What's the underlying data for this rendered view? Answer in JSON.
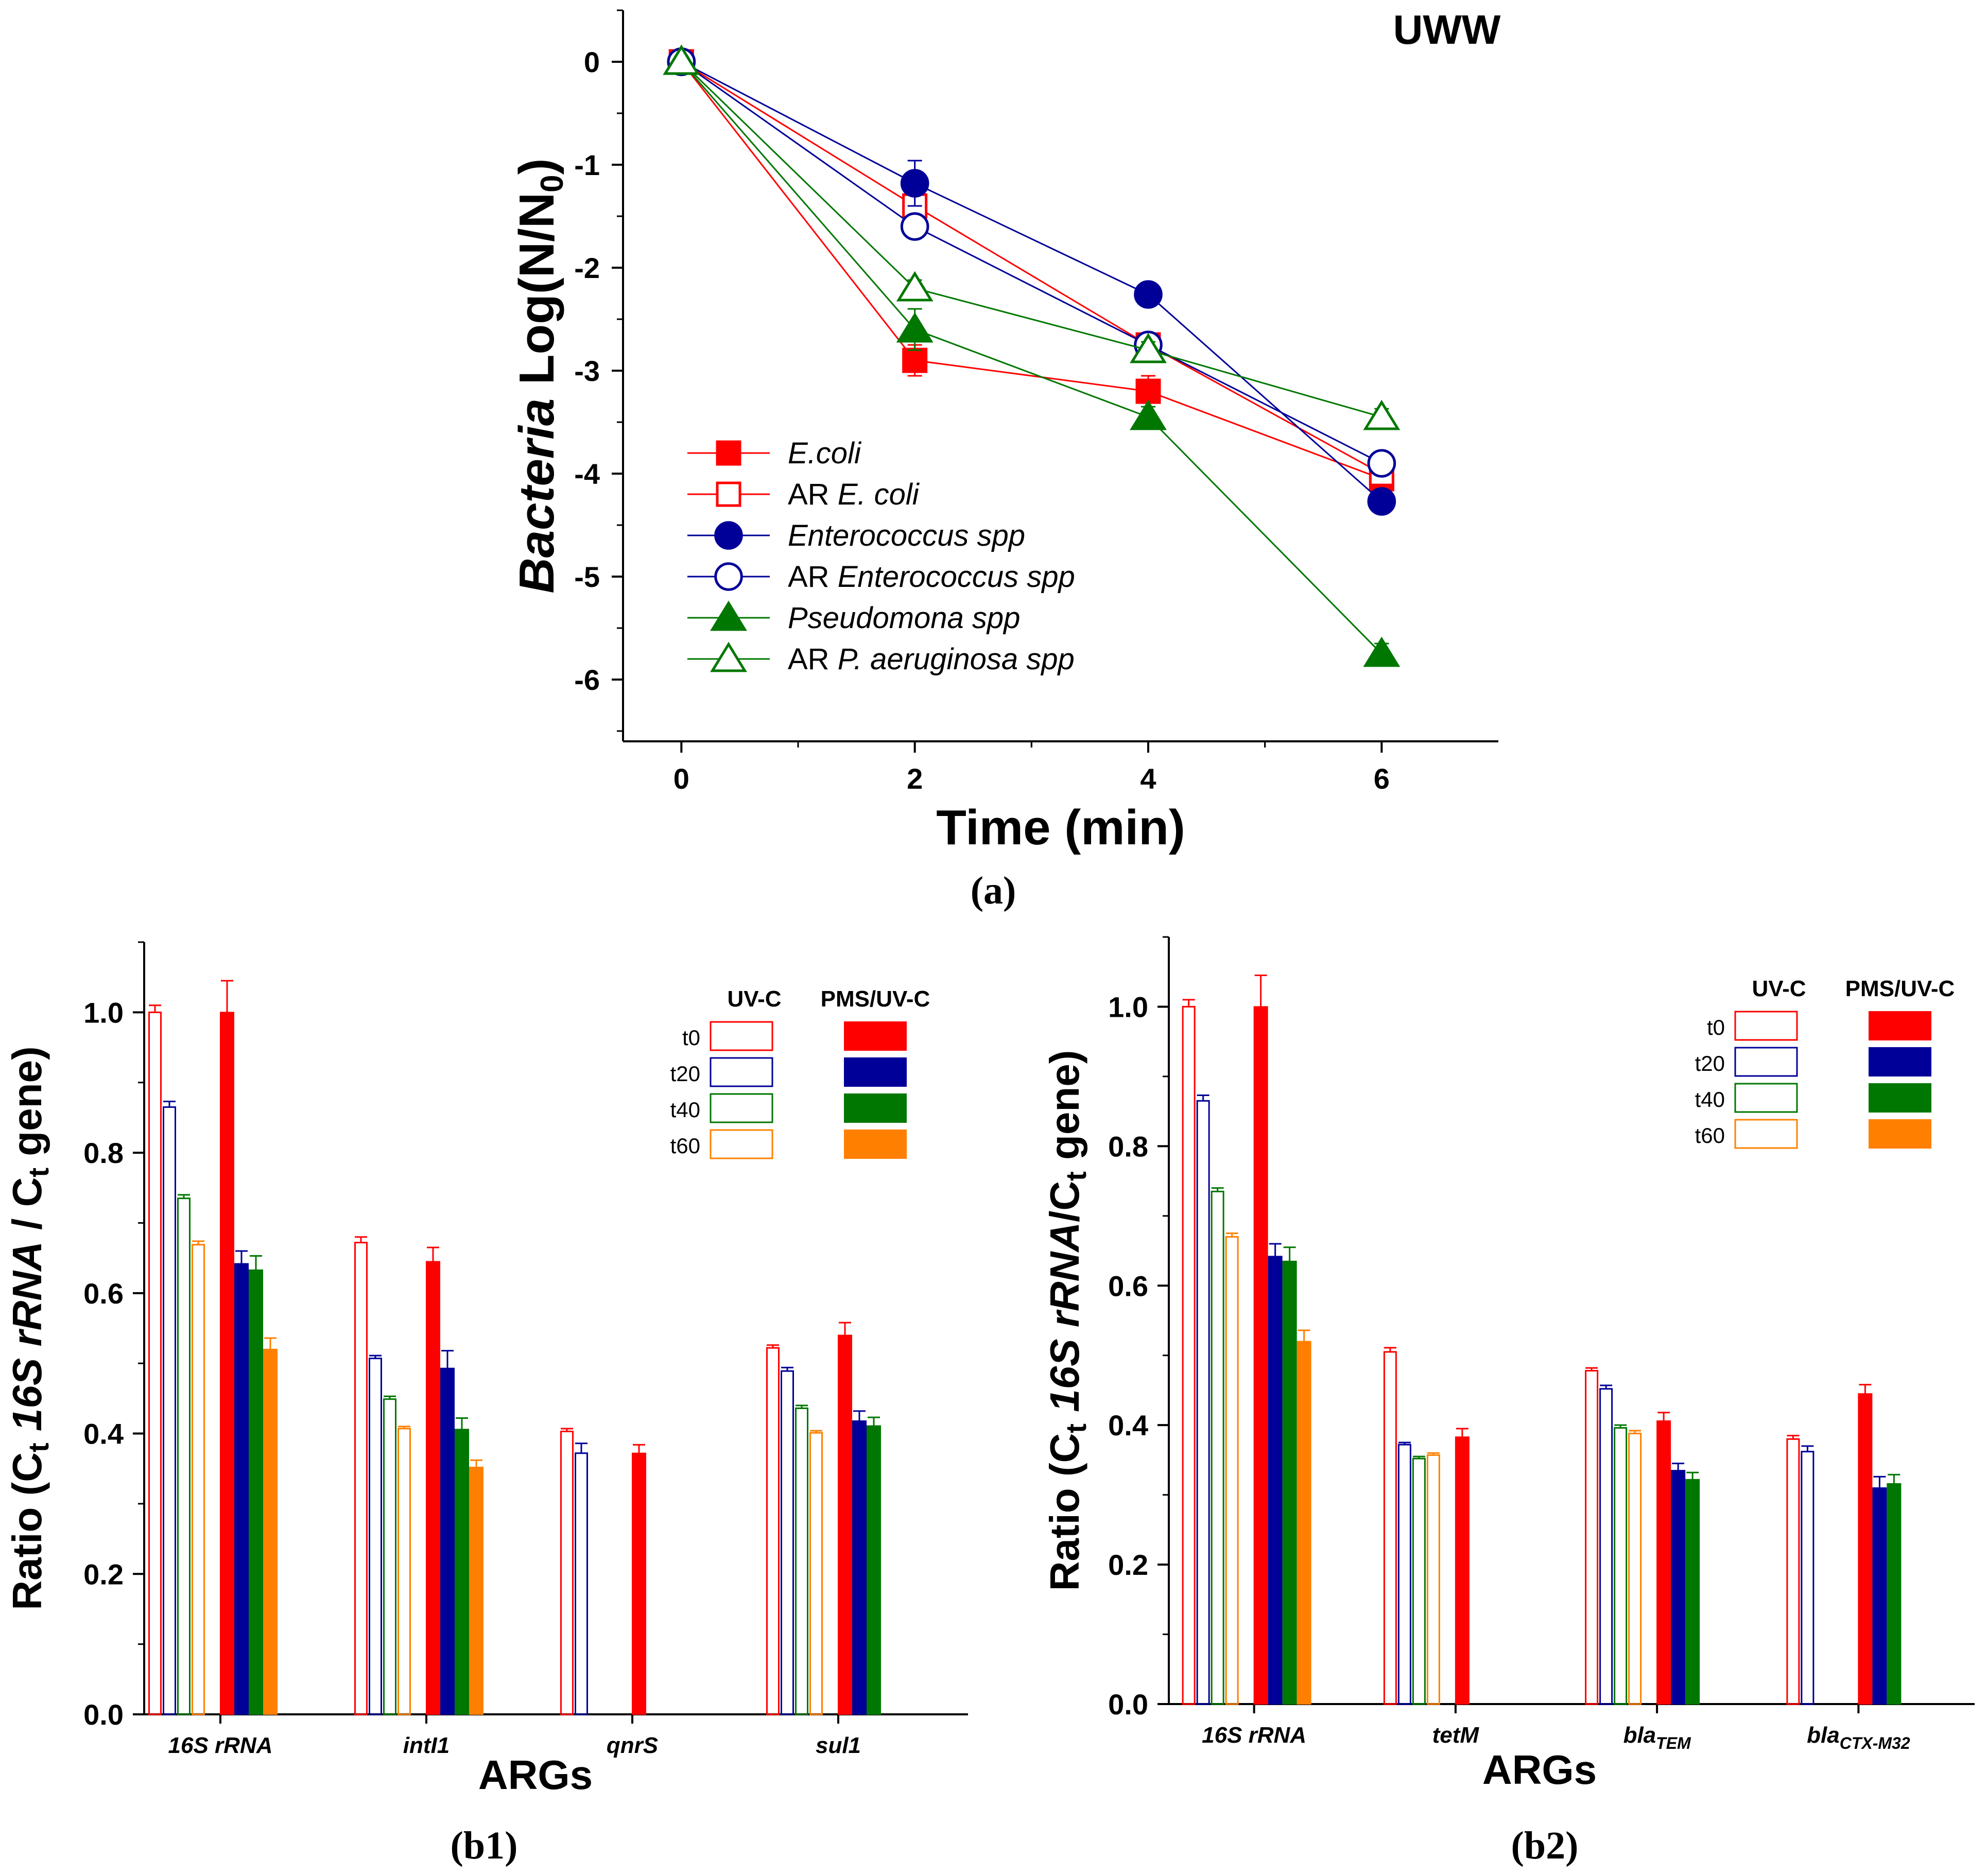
{
  "chart_data": [
    {
      "id": "a",
      "type": "line",
      "panel_label": "(a)",
      "annotation": "UWW",
      "title": "",
      "xlabel": "Time (min)",
      "ylabel_italic": "Bacteria",
      "ylabel_rest": " Log(N/N",
      "ylabel_sub": "0",
      "ylabel_close": ")",
      "xlim": [
        -0.5,
        7
      ],
      "ylim": [
        -6.6,
        0.5
      ],
      "x_ticks": [
        0,
        2,
        4,
        6
      ],
      "y_ticks": [
        0,
        -1,
        -2,
        -3,
        -4,
        -5,
        -6
      ],
      "x": [
        0,
        2,
        4,
        6
      ],
      "series": [
        {
          "name": "E.coli",
          "prefix": "",
          "italic": "E.coli",
          "color": "#ff0000",
          "marker": "square",
          "filled": true,
          "values": [
            0,
            -2.9,
            -3.2,
            -4.05
          ],
          "errors": [
            0.05,
            0.15,
            0.15,
            0.1
          ]
        },
        {
          "name": "AR E. coli",
          "prefix": "AR ",
          "italic": "E. coli",
          "color": "#ff0000",
          "marker": "square",
          "filled": false,
          "values": [
            0,
            -1.4,
            -2.75,
            -4.0
          ],
          "errors": [
            0.05,
            0.1,
            0.1,
            0.1
          ]
        },
        {
          "name": "Enterococcus spp",
          "prefix": "",
          "italic": "Enterococcus spp",
          "color": "#000099",
          "marker": "circle",
          "filled": true,
          "values": [
            0,
            -1.18,
            -2.26,
            -4.27
          ],
          "errors": [
            0.05,
            0.22,
            0.08,
            0.08
          ]
        },
        {
          "name": "AR Enterococcus spp",
          "prefix": "AR ",
          "italic": "Enterococcus spp",
          "color": "#000099",
          "marker": "circle",
          "filled": false,
          "values": [
            0,
            -1.6,
            -2.75,
            -3.9
          ],
          "errors": [
            0.05,
            0.1,
            0.1,
            0.08
          ]
        },
        {
          "name": "Pseudomona spp",
          "prefix": "",
          "italic": "Pseudomona spp",
          "color": "#007700",
          "marker": "triangle",
          "filled": true,
          "values": [
            0,
            -2.6,
            -3.45,
            -5.75
          ],
          "errors": [
            0.05,
            0.2,
            0.1,
            0.1
          ]
        },
        {
          "name": "AR P. aeruginosa spp",
          "prefix": "AR ",
          "italic": "P. aeruginosa spp",
          "color": "#007700",
          "marker": "triangle",
          "filled": false,
          "values": [
            0,
            -2.2,
            -2.8,
            -3.45
          ],
          "errors": [
            0.05,
            0.08,
            0.08,
            0.08
          ]
        }
      ]
    },
    {
      "id": "b1",
      "type": "bar",
      "panel_label": "(b1)",
      "xlabel": "ARGs",
      "ylabel_parts": [
        "Ratio (C",
        "t",
        " ",
        "16S rRNA",
        " / C",
        "t",
        " gene)"
      ],
      "ylim": [
        0,
        1.1
      ],
      "y_ticks": [
        0.0,
        0.2,
        0.4,
        0.6,
        0.8,
        1.0
      ],
      "categories": [
        {
          "base": "16S rRNA",
          "sub": ""
        },
        {
          "base": "intI1",
          "sub": ""
        },
        {
          "base": "qnrS",
          "sub": ""
        },
        {
          "base": "sul1",
          "sub": ""
        }
      ],
      "legend_headers": [
        "UV-C",
        "PMS/UV-C"
      ],
      "legend_rows": [
        "t0",
        "t20",
        "t40",
        "t60"
      ],
      "colors": [
        "#ff0000",
        "#000099",
        "#007700",
        "#ff8000"
      ],
      "series": [
        {
          "name": "UV-C t0",
          "filled": false,
          "color": "#ff0000",
          "values": [
            1.0,
            0.672,
            0.403,
            0.522
          ],
          "errors": [
            0.01,
            0.008,
            0.004,
            0.004
          ]
        },
        {
          "name": "UV-C t20",
          "filled": false,
          "color": "#000099",
          "values": [
            0.865,
            0.507,
            0.372,
            0.489
          ],
          "errors": [
            0.008,
            0.004,
            0.014,
            0.005
          ]
        },
        {
          "name": "UV-C t40",
          "filled": false,
          "color": "#007700",
          "values": [
            0.735,
            0.449,
            null,
            0.436
          ],
          "errors": [
            0.005,
            0.004,
            0,
            0.004
          ]
        },
        {
          "name": "UV-C t60",
          "filled": false,
          "color": "#ff8000",
          "values": [
            0.669,
            0.407,
            null,
            0.401
          ],
          "errors": [
            0.005,
            0.003,
            0,
            0.003
          ]
        },
        {
          "name": "PMS/UV-C t0",
          "filled": true,
          "color": "#ff0000",
          "values": [
            1.0,
            0.645,
            0.372,
            0.54
          ],
          "errors": [
            0.045,
            0.02,
            0.012,
            0.018
          ]
        },
        {
          "name": "PMS/UV-C t20",
          "filled": true,
          "color": "#000099",
          "values": [
            0.642,
            0.493,
            null,
            0.418
          ],
          "errors": [
            0.018,
            0.025,
            0,
            0.014
          ]
        },
        {
          "name": "PMS/UV-C t40",
          "filled": true,
          "color": "#007700",
          "values": [
            0.633,
            0.406,
            null,
            0.411
          ],
          "errors": [
            0.02,
            0.016,
            0,
            0.012
          ]
        },
        {
          "name": "PMS/UV-C t60",
          "filled": true,
          "color": "#ff8000",
          "values": [
            0.52,
            0.352,
            null,
            null
          ],
          "errors": [
            0.016,
            0.01,
            0,
            0
          ]
        }
      ]
    },
    {
      "id": "b2",
      "type": "bar",
      "panel_label": "(b2)",
      "xlabel": "ARGs",
      "ylabel_parts": [
        "Ratio (C",
        "t",
        " ",
        "16S rRNA",
        "/C",
        "t",
        " gene)"
      ],
      "ylim": [
        0,
        1.1
      ],
      "y_ticks": [
        0.0,
        0.2,
        0.4,
        0.6,
        0.8,
        1.0
      ],
      "categories": [
        {
          "base": "16S rRNA",
          "sub": ""
        },
        {
          "base": "tetM",
          "sub": ""
        },
        {
          "base": "bla",
          "sub": "TEM"
        },
        {
          "base": "bla",
          "sub": "CTX-M32"
        }
      ],
      "legend_headers": [
        "UV-C",
        "PMS/UV-C"
      ],
      "legend_rows": [
        "t0",
        "t20",
        "t40",
        "t60"
      ],
      "colors": [
        "#ff0000",
        "#000099",
        "#007700",
        "#ff8000"
      ],
      "series": [
        {
          "name": "UV-C t0",
          "filled": false,
          "color": "#ff0000",
          "values": [
            1.0,
            0.505,
            0.478,
            0.38
          ],
          "errors": [
            0.01,
            0.006,
            0.004,
            0.005
          ]
        },
        {
          "name": "UV-C t20",
          "filled": false,
          "color": "#000099",
          "values": [
            0.865,
            0.372,
            0.452,
            0.362
          ],
          "errors": [
            0.008,
            0.003,
            0.005,
            0.008
          ]
        },
        {
          "name": "UV-C t40",
          "filled": false,
          "color": "#007700",
          "values": [
            0.735,
            0.352,
            0.396,
            null
          ],
          "errors": [
            0.005,
            0.003,
            0.004,
            0
          ]
        },
        {
          "name": "UV-C t60",
          "filled": false,
          "color": "#ff8000",
          "values": [
            0.67,
            0.357,
            0.388,
            null
          ],
          "errors": [
            0.005,
            0.003,
            0.004,
            0
          ]
        },
        {
          "name": "PMS/UV-C t0",
          "filled": true,
          "color": "#ff0000",
          "values": [
            1.0,
            0.383,
            0.406,
            0.445
          ],
          "errors": [
            0.045,
            0.012,
            0.012,
            0.013
          ]
        },
        {
          "name": "PMS/UV-C t20",
          "filled": true,
          "color": "#000099",
          "values": [
            0.642,
            null,
            0.335,
            0.31
          ],
          "errors": [
            0.018,
            0,
            0.01,
            0.016
          ]
        },
        {
          "name": "PMS/UV-C t40",
          "filled": true,
          "color": "#007700",
          "values": [
            0.635,
            null,
            0.322,
            0.316
          ],
          "errors": [
            0.02,
            0,
            0.01,
            0.013
          ]
        },
        {
          "name": "PMS/UV-C t60",
          "filled": true,
          "color": "#ff8000",
          "values": [
            0.52,
            null,
            null,
            null
          ],
          "errors": [
            0.016,
            0,
            0,
            0
          ]
        }
      ]
    }
  ]
}
